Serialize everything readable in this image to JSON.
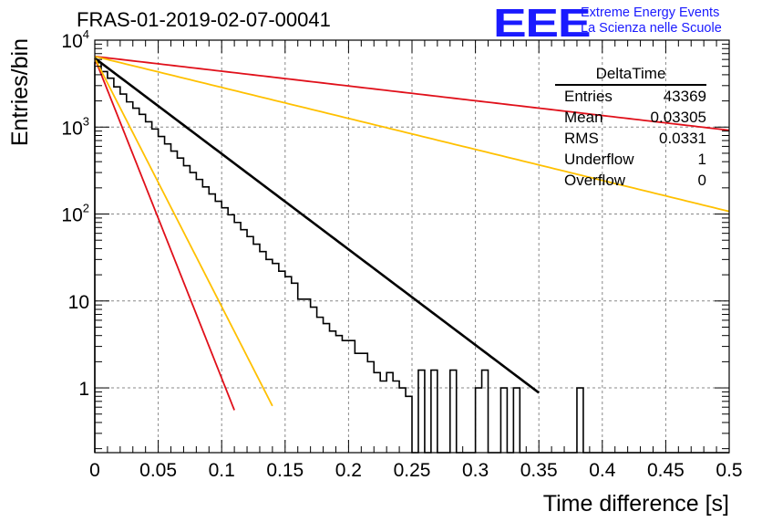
{
  "header": {
    "title": "FRAS-01-2019-02-07-00041",
    "logo_text": "EEE",
    "logo_line1": "Extreme Energy Events",
    "logo_line2": "La Scienza nelle Scuole"
  },
  "stats_box": {
    "name": "DeltaTime",
    "rows": [
      {
        "label": "Entries",
        "value": "43369"
      },
      {
        "label": "Mean",
        "value": "0.03305"
      },
      {
        "label": "RMS",
        "value": "0.0331"
      },
      {
        "label": "Underflow",
        "value": "1"
      },
      {
        "label": "Overflow",
        "value": "0"
      }
    ]
  },
  "chart_data": {
    "type": "line",
    "title": "FRAS-01-2019-02-07-00041",
    "xlabel": "Time difference [s]",
    "ylabel": "Entries/bin",
    "xlim": [
      0,
      0.5
    ],
    "ylim": [
      0.18,
      10000
    ],
    "yscale": "log",
    "grid": true,
    "x_ticks": [
      "0",
      "0.05",
      "0.1",
      "0.15",
      "0.2",
      "0.25",
      "0.3",
      "0.35",
      "0.4",
      "0.45",
      "0.5"
    ],
    "y_ticks": [
      "1",
      "10",
      "10^2",
      "10^3",
      "10^4"
    ],
    "histogram": {
      "name": "DeltaTime",
      "bin_width": 0.005,
      "color": "#000000",
      "values": [
        5500,
        4350,
        3650,
        2900,
        2400,
        1950,
        1650,
        1400,
        1150,
        950,
        780,
        640,
        530,
        440,
        360,
        300,
        250,
        205,
        170,
        140,
        118,
        98,
        80,
        66,
        55,
        45,
        37,
        30,
        27,
        22,
        19,
        16,
        10.5,
        10.5,
        8.5,
        6.5,
        5.5,
        4.5,
        4,
        3.5,
        3.5,
        2.5,
        2.5,
        2,
        1.5,
        1.2,
        1.5,
        1.2,
        1,
        0.8,
        0.05,
        1.6,
        0.05,
        1.6,
        0.05,
        0.05,
        1.6,
        0.05,
        0.05,
        0.05,
        1,
        1.6,
        0.05,
        0.05,
        1,
        0.05,
        1,
        0.05,
        0.05,
        0.05,
        0.05,
        0.05,
        0.05,
        0.05,
        0.05,
        0.05,
        1,
        0.05,
        0.05,
        0.05,
        0.05,
        0.05,
        0.05,
        0.05,
        0.05,
        0.05,
        0.05,
        0.05,
        0.05,
        0.05,
        0.05,
        0.05,
        0.05,
        0.05,
        0.05,
        0.05,
        0.05,
        0.05,
        0.05,
        0.05
      ]
    },
    "series": [
      {
        "kind": "exp",
        "color": "#000000",
        "A": 6200,
        "tau": 0.0395,
        "x_end": 0.35
      },
      {
        "kind": "exp",
        "color": "#e0101a",
        "A": 6200,
        "tau": 0.0118,
        "x_end": 0.11
      },
      {
        "kind": "exp",
        "color": "#ffc000",
        "A": 6200,
        "tau": 0.0152,
        "x_end": 0.14
      },
      {
        "kind": "exp",
        "color": "#e0101a",
        "A": 6500,
        "tau": 0.2556,
        "x_end": 0.5
      },
      {
        "kind": "exp",
        "color": "#ffc000",
        "A": 6500,
        "tau": 0.1218,
        "x_end": 0.5
      }
    ]
  }
}
